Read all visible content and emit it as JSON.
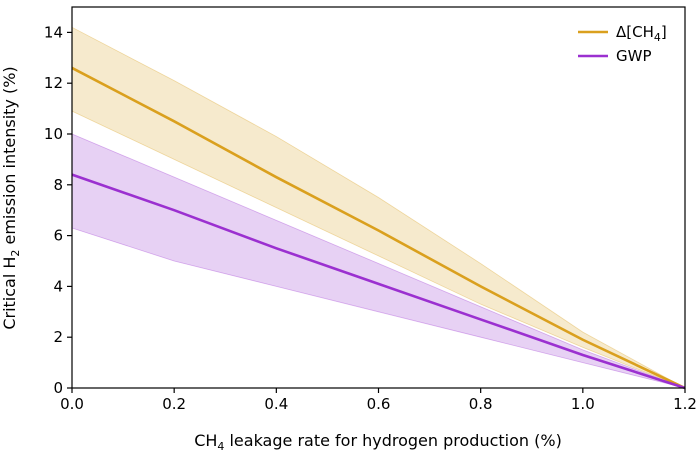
{
  "chart_data": {
    "type": "line",
    "title": "",
    "xlabel": {
      "prefix": "CH",
      "sub": "4",
      "suffix": " leakage rate for hydrogen production (%)"
    },
    "ylabel": {
      "prefix": "Critical H",
      "sub": "2",
      "suffix": " emission intensity (%)"
    },
    "xlim": [
      0,
      1.2
    ],
    "ylim": [
      0,
      15
    ],
    "xticks": [
      0.0,
      0.2,
      0.4,
      0.6,
      0.8,
      1.0,
      1.2
    ],
    "xtick_labels": [
      "0.0",
      "0.2",
      "0.4",
      "0.6",
      "0.8",
      "1.0",
      "1.2"
    ],
    "yticks": [
      0,
      2,
      4,
      6,
      8,
      10,
      12,
      14
    ],
    "ytick_labels": [
      "0",
      "2",
      "4",
      "6",
      "8",
      "10",
      "12",
      "14"
    ],
    "grid": false,
    "legend_position": "top-right",
    "series": [
      {
        "name": "Δ[CH4]",
        "legend": {
          "prefix": "Δ[CH",
          "sub": "4",
          "suffix": "]"
        },
        "color": "#DAA01E",
        "band_color": "#F5E6C4",
        "x": [
          0.0,
          0.2,
          0.4,
          0.6,
          0.8,
          1.0,
          1.2
        ],
        "values": [
          12.6,
          10.5,
          8.3,
          6.2,
          4.0,
          1.9,
          0.0
        ],
        "upper": [
          14.2,
          12.1,
          9.9,
          7.5,
          4.9,
          2.2,
          0.0
        ],
        "lower": [
          10.9,
          9.0,
          7.1,
          5.2,
          3.3,
          1.6,
          0.0
        ]
      },
      {
        "name": "GWP",
        "legend": {
          "prefix": "GWP",
          "sub": "",
          "suffix": ""
        },
        "color": "#9B30D0",
        "band_color": "#E3C9F2",
        "x": [
          0.0,
          0.2,
          0.4,
          0.6,
          0.8,
          1.0,
          1.2
        ],
        "values": [
          8.4,
          7.0,
          5.5,
          4.1,
          2.7,
          1.3,
          0.0
        ],
        "upper": [
          10.0,
          8.3,
          6.6,
          4.9,
          3.2,
          1.5,
          0.0
        ],
        "lower": [
          6.3,
          5.0,
          4.0,
          3.0,
          2.0,
          1.0,
          0.0
        ]
      }
    ]
  }
}
